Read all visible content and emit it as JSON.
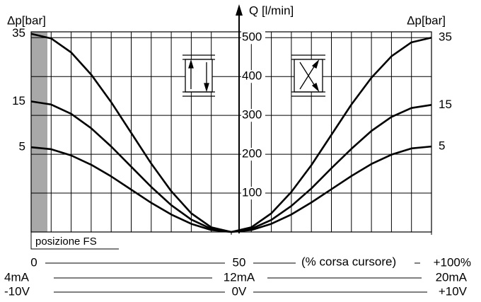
{
  "chart_data": {
    "type": "line",
    "y_label": "Q [l/min]",
    "left_label": "Δp[bar]",
    "right_label": "Δp[bar]",
    "band_label": "posizione FS",
    "x_label": "(% corsa cursore)",
    "x": [
      0,
      5,
      10,
      15,
      20,
      25,
      30,
      35,
      40,
      45,
      50,
      55,
      60,
      65,
      70,
      75,
      80,
      85,
      90,
      95,
      100
    ],
    "series": [
      {
        "name": "35",
        "side": "left",
        "color": "#000000",
        "values": [
          510,
          498,
          462,
          405,
          334,
          255,
          176,
          105,
          48,
          12,
          0,
          null,
          null,
          null,
          null,
          null,
          null,
          null,
          null,
          null,
          null
        ]
      },
      {
        "name": "15",
        "side": "left",
        "color": "#000000",
        "values": [
          336,
          328,
          304,
          267,
          220,
          168,
          116,
          69,
          32,
          8,
          0,
          null,
          null,
          null,
          null,
          null,
          null,
          null,
          null,
          null,
          null
        ]
      },
      {
        "name": "5",
        "side": "left",
        "color": "#000000",
        "values": [
          218,
          213,
          197,
          173,
          143,
          109,
          75,
          45,
          21,
          5,
          0,
          null,
          null,
          null,
          null,
          null,
          null,
          null,
          null,
          null,
          null
        ]
      },
      {
        "name": "35",
        "side": "right",
        "color": "#000000",
        "values": [
          null,
          null,
          null,
          null,
          null,
          null,
          null,
          null,
          null,
          null,
          0,
          12,
          48,
          103,
          172,
          250,
          328,
          397,
          452,
          488,
          500
        ]
      },
      {
        "name": "15",
        "side": "right",
        "color": "#000000",
        "values": [
          null,
          null,
          null,
          null,
          null,
          null,
          null,
          null,
          null,
          null,
          0,
          8,
          31,
          67,
          112,
          164,
          214,
          260,
          296,
          319,
          327
        ]
      },
      {
        "name": "5",
        "side": "right",
        "color": "#000000",
        "values": [
          null,
          null,
          null,
          null,
          null,
          null,
          null,
          null,
          null,
          null,
          0,
          5,
          21,
          45,
          76,
          110,
          144,
          175,
          199,
          215,
          220
        ]
      }
    ],
    "xlim": [
      0,
      100
    ],
    "xticks": [
      0,
      50,
      {
        "value": 100,
        "label": "+100%"
      }
    ],
    "xminor": [
      5,
      10,
      15,
      20,
      25,
      30,
      35,
      40,
      45,
      55,
      60,
      65,
      70,
      75,
      80,
      85,
      90,
      95
    ],
    "current_labels": [
      "4mA",
      "12mA",
      "20mA"
    ],
    "voltage_labels": [
      "-10V",
      "0V",
      "+10V"
    ],
    "ylim": [
      0,
      515
    ],
    "yticks": [
      100,
      200,
      300,
      400,
      500
    ],
    "grid": true
  }
}
